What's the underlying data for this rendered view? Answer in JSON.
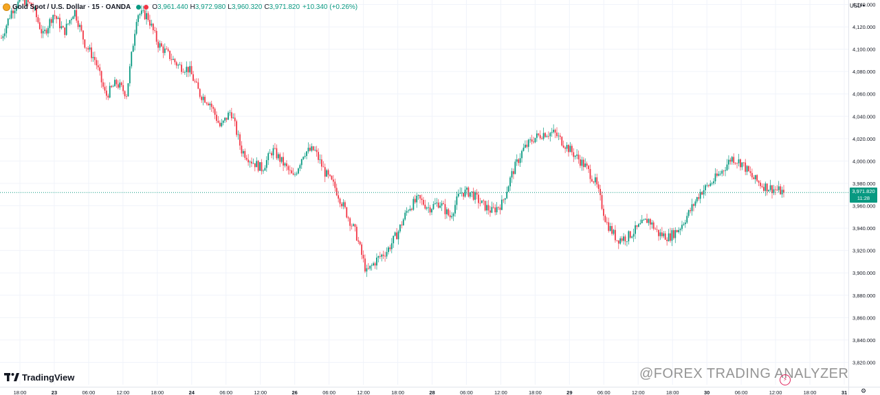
{
  "header": {
    "symbol": "Gold Spot / U.S. Dollar · 15 · OANDA",
    "open_label": "O",
    "open": "3,961.440",
    "high_label": "H",
    "high": "3,972.980",
    "low_label": "L",
    "low": "3,960.320",
    "close_label": "C",
    "close": "3,971.820",
    "change": "+10.340 (+0.26%)"
  },
  "currency": "USD",
  "price_tag": {
    "price": "3,971.820",
    "countdown": "11:28"
  },
  "branding": {
    "logo_text": "TradingView"
  },
  "watermark": "@FOREX TRADING ANALYZER",
  "colors": {
    "up": "#089981",
    "down": "#f23645",
    "grid": "#f0f3fa",
    "current_line": "#089981"
  },
  "chart_data": {
    "type": "candlestick",
    "title": "Gold Spot / U.S. Dollar · 15 · OANDA",
    "ylim": [
      3800,
      4144
    ],
    "y_ticks": [
      "3,820.000",
      "3,840.000",
      "3,860.000",
      "3,880.000",
      "3,900.000",
      "3,920.000",
      "3,940.000",
      "3,960.000",
      "3,980.000",
      "4,000.000",
      "4,020.000",
      "4,040.000",
      "4,060.000",
      "4,080.000",
      "4,100.000",
      "4,120.000",
      "4,140.000"
    ],
    "x_ticks": [
      "18:00",
      "23",
      "06:00",
      "12:00",
      "18:00",
      "24",
      "06:00",
      "12:00",
      "26",
      "06:00",
      "12:00",
      "18:00",
      "28",
      "06:00",
      "12:00",
      "18:00",
      "29",
      "06:00",
      "12:00",
      "18:00",
      "30",
      "06:00",
      "12:00",
      "18:00",
      "31"
    ],
    "current_price": 3971.82,
    "price_path": [
      4110,
      4135,
      4145,
      4138,
      4112,
      4132,
      4115,
      4135,
      4105,
      4090,
      4058,
      4070,
      4060,
      4132,
      4130,
      4105,
      4095,
      4085,
      4082,
      4060,
      4052,
      4030,
      4045,
      4010,
      4000,
      3993,
      4010,
      3998,
      3985,
      4008,
      4010,
      3990,
      3976,
      3955,
      3935,
      3900,
      3912,
      3920,
      3936,
      3958,
      3966,
      3958,
      3963,
      3950,
      3972,
      3972,
      3962,
      3955,
      3962,
      3990,
      4010,
      4020,
      4025,
      4025,
      4015,
      4005,
      3995,
      3980,
      3945,
      3930,
      3932,
      3940,
      3948,
      3935,
      3932,
      3940,
      3955,
      3972,
      3980,
      3990,
      4003,
      3998,
      3985,
      3978,
      3975,
      3972
    ]
  }
}
